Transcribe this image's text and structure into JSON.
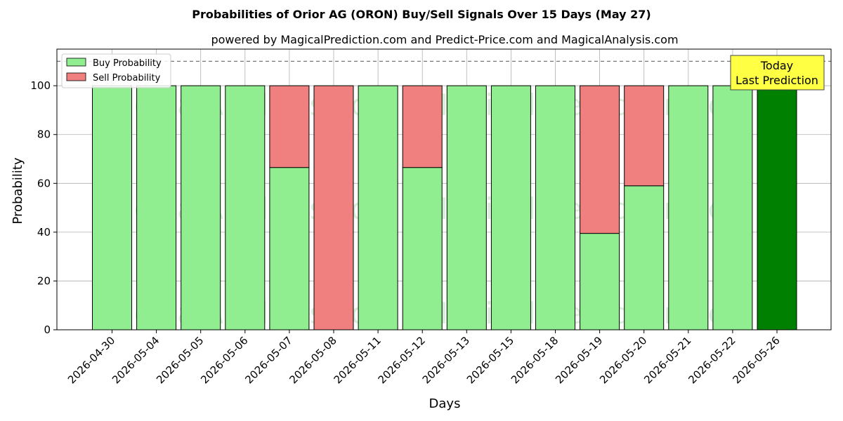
{
  "chart_data": {
    "type": "bar",
    "stacked": true,
    "title": "Probabilities of Orior AG (ORON) Buy/Sell Signals Over 15 Days (May 27)",
    "subtitle": "powered by MagicalPrediction.com and Predict-Price.com and MagicalAnalysis.com",
    "xlabel": "Days",
    "ylabel": "Probability",
    "ylim": [
      0,
      115
    ],
    "yticks": [
      0,
      20,
      40,
      60,
      80,
      100
    ],
    "grid": true,
    "legend_placement": "top-left",
    "reference_line": 110,
    "categories": [
      "2026-04-30",
      "2026-05-04",
      "2026-05-05",
      "2026-05-06",
      "2026-05-07",
      "2026-05-08",
      "2026-05-11",
      "2026-05-12",
      "2026-05-13",
      "2026-05-15",
      "2026-05-18",
      "2026-05-19",
      "2026-05-20",
      "2026-05-21",
      "2026-05-22",
      "2026-05-26"
    ],
    "series": [
      {
        "name": "Buy Probability",
        "color": "#90ee90",
        "values": [
          100,
          100,
          100,
          100,
          66.5,
          0,
          100,
          66.5,
          100,
          100,
          100,
          39.5,
          59,
          100,
          100,
          100
        ]
      },
      {
        "name": "Sell Probability",
        "color": "#f08080",
        "values": [
          0,
          0,
          0,
          0,
          33.5,
          100,
          0,
          33.5,
          0,
          0,
          0,
          60.5,
          41,
          0,
          0,
          0
        ]
      }
    ],
    "highlight": {
      "index": 15,
      "color": "#008000"
    },
    "annotation": {
      "line1": "Today",
      "line2": "Last Prediction",
      "background": "#ffff44"
    },
    "watermarks": [
      "MagicalAnalysis.com",
      "MagicalPrediction.com"
    ]
  }
}
